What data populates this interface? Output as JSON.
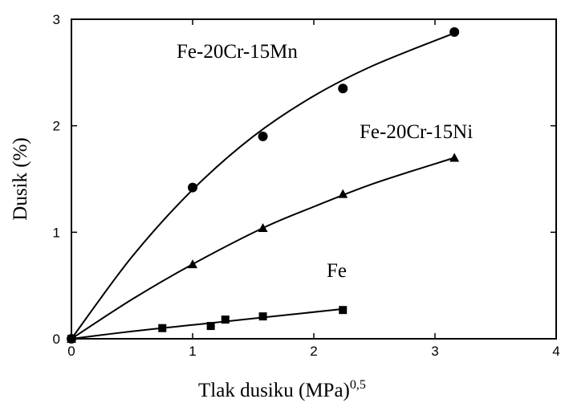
{
  "chart_data": {
    "type": "scatter",
    "xlabel": "Tlak dusiku (MPa)",
    "xlabel_sup": "0,5",
    "ylabel": "Dusik (%)",
    "xlim": [
      0,
      4
    ],
    "ylim": [
      0,
      3
    ],
    "x_ticks": [
      "0",
      "1",
      "2",
      "3",
      "4"
    ],
    "y_ticks": [
      "0",
      "1",
      "2",
      "3"
    ],
    "grid": false,
    "series": [
      {
        "name": "Fe-20Cr-15Mn",
        "marker": "circle",
        "points": [
          [
            0,
            0
          ],
          [
            1.0,
            1.42
          ],
          [
            1.58,
            1.9
          ],
          [
            2.24,
            2.35
          ],
          [
            3.16,
            2.88
          ]
        ],
        "curve": [
          [
            0,
            0
          ],
          [
            0.5,
            0.77
          ],
          [
            1.0,
            1.4
          ],
          [
            1.5,
            1.9
          ],
          [
            2.0,
            2.28
          ],
          [
            2.5,
            2.57
          ],
          [
            3.16,
            2.87
          ]
        ]
      },
      {
        "name": "Fe-20Cr-15Ni",
        "marker": "triangle",
        "points": [
          [
            0,
            0
          ],
          [
            1.0,
            0.7
          ],
          [
            1.58,
            1.04
          ],
          [
            2.24,
            1.36
          ],
          [
            3.16,
            1.7
          ]
        ],
        "curve": [
          [
            0,
            0
          ],
          [
            0.5,
            0.37
          ],
          [
            1.0,
            0.7
          ],
          [
            1.58,
            1.04
          ],
          [
            2.0,
            1.24
          ],
          [
            2.5,
            1.46
          ],
          [
            3.16,
            1.7
          ]
        ]
      },
      {
        "name": "Fe",
        "marker": "square",
        "points": [
          [
            0,
            0
          ],
          [
            0.75,
            0.1
          ],
          [
            1.15,
            0.12
          ],
          [
            1.27,
            0.18
          ],
          [
            1.58,
            0.21
          ],
          [
            2.24,
            0.27
          ]
        ],
        "curve": [
          [
            0,
            0
          ],
          [
            0.5,
            0.07
          ],
          [
            1.0,
            0.13
          ],
          [
            1.5,
            0.19
          ],
          [
            2.24,
            0.28
          ]
        ]
      }
    ]
  }
}
